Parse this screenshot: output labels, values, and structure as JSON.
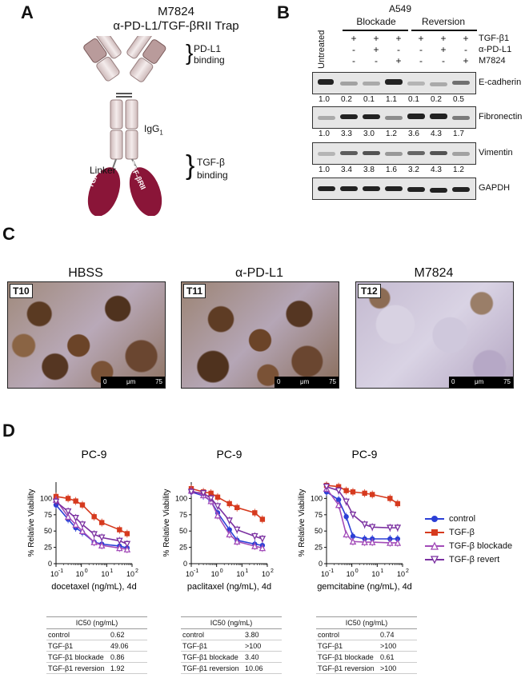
{
  "panel_a": {
    "letter": "A",
    "title": "M7824",
    "subtitle": "α-PD-L1/TGF-βRII Trap",
    "pdl1_label": [
      "PD-L1",
      "binding"
    ],
    "igg_label": "IgG",
    "igg_sub": "1",
    "linker_label": "Linker",
    "tgfb_label": [
      "TGF-β",
      "binding"
    ],
    "trap_text": "TGF-βRII"
  },
  "panel_b": {
    "letter": "B",
    "cell_line": "A549",
    "untreated": "Untreated",
    "groups": [
      "Blockade",
      "Reversion"
    ],
    "row_labels": [
      "TGF-β1",
      "α-PD-L1",
      "M7824"
    ],
    "signs": [
      [
        "+",
        "+",
        "+",
        "+",
        "+",
        "+"
      ],
      [
        "-",
        "+",
        "-",
        "-",
        "+",
        "-"
      ],
      [
        "-",
        "-",
        "+",
        "-",
        "-",
        "+"
      ]
    ],
    "blots": [
      {
        "name": "E-cadherin",
        "quant": [
          "1.0",
          "0.2",
          "0.1",
          "1.1",
          "0.1",
          "0.2",
          "0.5"
        ]
      },
      {
        "name": "Fibronectin",
        "quant": [
          "1.0",
          "3.3",
          "3.0",
          "1.2",
          "3.6",
          "4.3",
          "1.7"
        ]
      },
      {
        "name": "Vimentin",
        "quant": [
          "1.0",
          "3.4",
          "3.8",
          "1.6",
          "3.2",
          "4.3",
          "1.2"
        ]
      },
      {
        "name": "GAPDH",
        "quant": []
      }
    ]
  },
  "panel_c": {
    "letter": "C",
    "images": [
      {
        "title": "HBSS",
        "tag": "T10"
      },
      {
        "title": "α-PD-L1",
        "tag": "T11"
      },
      {
        "title": "M7824",
        "tag": "T12"
      }
    ],
    "scale": {
      "left": "0",
      "unit": "μm",
      "right": "75"
    }
  },
  "panel_d": {
    "letter": "D",
    "legend": [
      {
        "name": "control",
        "color": "#2b3fd6",
        "marker": "circle"
      },
      {
        "name": "TGF-β",
        "color": "#d63a1e",
        "marker": "square"
      },
      {
        "name": "TGF-β blockade",
        "color": "#a24bb8",
        "marker": "triangle-up"
      },
      {
        "name": "TGF-β revert",
        "color": "#7a2fa0",
        "marker": "triangle-down"
      }
    ],
    "ic50_tables": [
      {
        "header": "IC50 (ng/mL)",
        "rows": [
          [
            "control",
            "0.62"
          ],
          [
            "TGF-β1",
            "49.06"
          ],
          [
            "TGF-β1 blockade",
            "0.86"
          ],
          [
            "TGF-β1 reversion",
            "1.92"
          ]
        ]
      },
      {
        "header": "IC50 (ng/mL)",
        "rows": [
          [
            "control",
            "3.80"
          ],
          [
            "TGF-β1",
            ">100"
          ],
          [
            "TGF-β1 blockade",
            "3.40"
          ],
          [
            "TGF-β1 reversion",
            "10.06"
          ]
        ]
      },
      {
        "header": "IC50 (ng/mL)",
        "rows": [
          [
            "control",
            "0.74"
          ],
          [
            "TGF-β1",
            ">100"
          ],
          [
            "TGF-β1 blockade",
            "0.61"
          ],
          [
            "TGF-β1 reversion",
            ">100"
          ]
        ]
      }
    ]
  },
  "chart_data": [
    {
      "type": "scatter",
      "title": "PC-9",
      "xlabel": "docetaxel (ng/mL), 4d",
      "ylabel": "% Relative Viability",
      "xscale": "log",
      "xlim": [
        0.1,
        100
      ],
      "ylim": [
        0,
        125
      ],
      "xticks": [
        "10^-1",
        "10^0",
        "10^1",
        "10^2"
      ],
      "yticks": [
        0,
        25,
        50,
        75,
        100
      ],
      "x": [
        0.1,
        0.3,
        0.6,
        1.1,
        3.2,
        6.4,
        32,
        64
      ],
      "series": [
        {
          "name": "control",
          "values": [
            90,
            68,
            55,
            48,
            33,
            30,
            27,
            24
          ]
        },
        {
          "name": "TGF-β",
          "values": [
            103,
            100,
            96,
            90,
            72,
            63,
            52,
            46
          ]
        },
        {
          "name": "TGF-β blockade",
          "values": [
            98,
            72,
            60,
            50,
            33,
            28,
            24,
            22
          ]
        },
        {
          "name": "TGF-β revert",
          "values": [
            95,
            80,
            70,
            60,
            45,
            40,
            35,
            30
          ]
        }
      ]
    },
    {
      "type": "scatter",
      "title": "PC-9",
      "xlabel": "paclitaxel (ng/mL), 4d",
      "ylabel": "% Relative Viability",
      "xscale": "log",
      "xlim": [
        0.1,
        100
      ],
      "ylim": [
        0,
        125
      ],
      "xticks": [
        "10^-1",
        "10^0",
        "10^1",
        "10^2"
      ],
      "yticks": [
        0,
        25,
        50,
        75,
        100
      ],
      "x": [
        0.1,
        0.3,
        0.6,
        1.1,
        3.2,
        6.4,
        32,
        64
      ],
      "series": [
        {
          "name": "control",
          "values": [
            110,
            104,
            96,
            78,
            52,
            36,
            30,
            28
          ]
        },
        {
          "name": "TGF-β",
          "values": [
            115,
            110,
            108,
            102,
            92,
            86,
            78,
            68
          ]
        },
        {
          "name": "TGF-β blockade",
          "values": [
            112,
            105,
            96,
            74,
            45,
            34,
            27,
            24
          ]
        },
        {
          "name": "TGF-β revert",
          "values": [
            110,
            108,
            100,
            88,
            66,
            52,
            42,
            38
          ]
        }
      ]
    },
    {
      "type": "scatter",
      "title": "PC-9",
      "xlabel": "gemcitabine (ng/mL), 4d",
      "ylabel": "% Relative Viability",
      "xscale": "log",
      "xlim": [
        0.1,
        100
      ],
      "ylim": [
        0,
        125
      ],
      "xticks": [
        "10^-1",
        "10^0",
        "10^1",
        "10^2"
      ],
      "yticks": [
        0,
        25,
        50,
        75,
        100
      ],
      "x": [
        0.1,
        0.3,
        0.6,
        1.1,
        3.2,
        6.4,
        32,
        64
      ],
      "series": [
        {
          "name": "control",
          "values": [
            110,
            98,
            72,
            42,
            38,
            38,
            38,
            38
          ]
        },
        {
          "name": "TGF-β",
          "values": [
            120,
            118,
            112,
            110,
            108,
            106,
            100,
            92
          ]
        },
        {
          "name": "TGF-β blockade",
          "values": [
            115,
            90,
            45,
            34,
            33,
            33,
            32,
            32
          ]
        },
        {
          "name": "TGF-β revert",
          "values": [
            118,
            112,
            95,
            75,
            60,
            56,
            55,
            55
          ]
        }
      ]
    }
  ]
}
